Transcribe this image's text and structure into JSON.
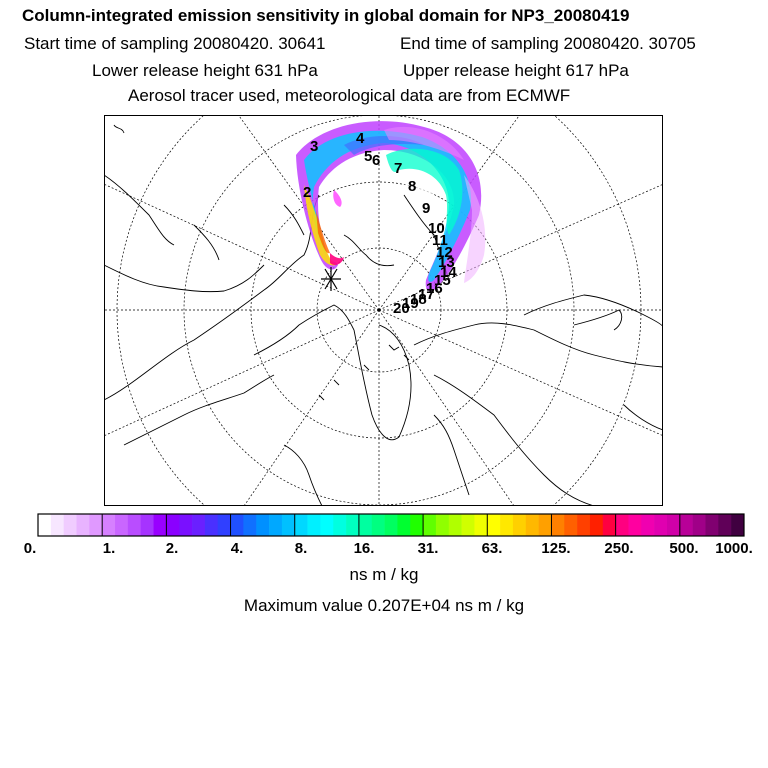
{
  "header": {
    "title": "Column-integrated emission sensitivity in global domain for NP3_20080419",
    "start_time": "Start time of sampling 20080420. 30641",
    "end_time": "End time of sampling 20080420. 30705",
    "lower_height": "Lower release height  631 hPa",
    "upper_height": "Upper release height  617 hPa",
    "tracer_info": "Aerosol tracer used, meteorological data are from ECMWF"
  },
  "map": {
    "trajectory_labels": [
      "2",
      "3",
      "4",
      "5",
      "6",
      "7",
      "8",
      "9",
      "10",
      "11",
      "12",
      "13",
      "14",
      "15",
      "16",
      "17",
      "18",
      "19",
      "20"
    ],
    "release_marker": "release-point-star"
  },
  "colorbar": {
    "tick_labels": [
      "0.",
      "1.",
      "2.",
      "4.",
      "8.",
      "16.",
      "31.",
      "63.",
      "125.",
      "250.",
      "500.",
      "1000."
    ],
    "colors": [
      "#ffffff",
      "#f7e6ff",
      "#f0ccff",
      "#e8b3ff",
      "#e099ff",
      "#d680ff",
      "#c966ff",
      "#b94dff",
      "#a633ff",
      "#9900ff",
      "#8a00ff",
      "#7a10ff",
      "#6a20ff",
      "#4a30ff",
      "#3040ff",
      "#2050ff",
      "#1070ff",
      "#0090ff",
      "#00a8ff",
      "#00c0ff",
      "#00d8ff",
      "#00f0ff",
      "#00ffff",
      "#00ffe0",
      "#00ffc0",
      "#00ffa0",
      "#00ff80",
      "#00ff60",
      "#00ff30",
      "#20ff00",
      "#60ff00",
      "#90ff00",
      "#b0ff00",
      "#d0ff00",
      "#f0ff00",
      "#ffff00",
      "#ffe800",
      "#ffd000",
      "#ffb800",
      "#ffa000",
      "#ff8000",
      "#ff6000",
      "#ff4000",
      "#ff2000",
      "#ff0040",
      "#ff0080",
      "#ff00a0",
      "#f000b0",
      "#e000b0",
      "#d000a8",
      "#b80098",
      "#a00088",
      "#800070",
      "#600058",
      "#400040"
    ],
    "units": "ns m / kg"
  },
  "footer": {
    "max_value": "Maximum value  0.207E+04 ns m / kg"
  }
}
